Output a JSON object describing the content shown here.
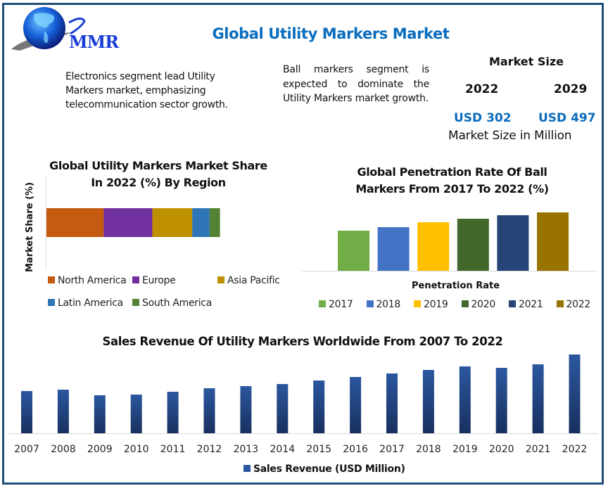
{
  "header": {
    "logo_text": "MMR",
    "title": "Global Utility Markers Market"
  },
  "notes": {
    "left": "Electronics segment lead Utility Markers market, emphasizing telecommunication sector growth.",
    "right": "Ball markers segment is expected to dominate the Utility Markers market growth."
  },
  "market_size": {
    "title": "Market Size",
    "years": [
      "2022",
      "2029"
    ],
    "values": [
      "USD 302",
      "USD 497"
    ],
    "footer": "Market Size in Million"
  },
  "colors": {
    "frame": "#1f4e79",
    "title_blue": "#0a6cbd",
    "revenue_bar_top": "#2b579f",
    "revenue_bar_bottom": "#18305f"
  },
  "chart_data": [
    {
      "type": "bar",
      "orientation": "horizontal-stacked",
      "title": "Global Utility Markers Market Share In 2022 (%) By Region",
      "ylabel": "Market Share (%)",
      "xlabel": "",
      "categories": [
        "2022"
      ],
      "series": [
        {
          "name": "North America",
          "values": [
            33
          ],
          "color": "#c55a11"
        },
        {
          "name": "Europe",
          "values": [
            28
          ],
          "color": "#7030a0"
        },
        {
          "name": "Asia Pacific",
          "values": [
            23
          ],
          "color": "#bf9000"
        },
        {
          "name": "Latin America",
          "values": [
            10
          ],
          "color": "#2e75b6"
        },
        {
          "name": "South America",
          "values": [
            6
          ],
          "color": "#548235"
        }
      ],
      "xlim": [
        0,
        150
      ],
      "legend": "bottom",
      "grid": false
    },
    {
      "type": "bar",
      "title": "Global Penetration Rate Of Ball Markers From 2017 To 2022 (%)",
      "xlabel": "Penetration Rate",
      "ylabel": "",
      "categories": [
        "2017",
        "2018",
        "2019",
        "2020",
        "2021",
        "2022"
      ],
      "series": [
        {
          "name": "2017",
          "values": [
            57
          ],
          "color": "#70ad47"
        },
        {
          "name": "2018",
          "values": [
            62
          ],
          "color": "#4472c4"
        },
        {
          "name": "2019",
          "values": [
            69
          ],
          "color": "#ffc000"
        },
        {
          "name": "2020",
          "values": [
            74
          ],
          "color": "#43682b"
        },
        {
          "name": "2021",
          "values": [
            79
          ],
          "color": "#264478"
        },
        {
          "name": "2022",
          "values": [
            83
          ],
          "color": "#997300"
        }
      ],
      "ylim": [
        0,
        100
      ],
      "legend": "bottom",
      "grid": false
    },
    {
      "type": "bar",
      "title": "Sales Revenue Of Utility Markers Worldwide From 2007 To 2022",
      "xlabel": "",
      "ylabel": "",
      "categories": [
        "2007",
        "2008",
        "2009",
        "2010",
        "2011",
        "2012",
        "2013",
        "2014",
        "2015",
        "2016",
        "2017",
        "2018",
        "2019",
        "2020",
        "2021",
        "2022"
      ],
      "series": [
        {
          "name": "Sales Revenue (USD Million)",
          "values": [
            60,
            62,
            54,
            55,
            59,
            64,
            67,
            70,
            75,
            80,
            85,
            90,
            95,
            93,
            98,
            112
          ]
        }
      ],
      "ylim": [
        0,
        125
      ],
      "legend": "bottom",
      "grid": false
    }
  ]
}
